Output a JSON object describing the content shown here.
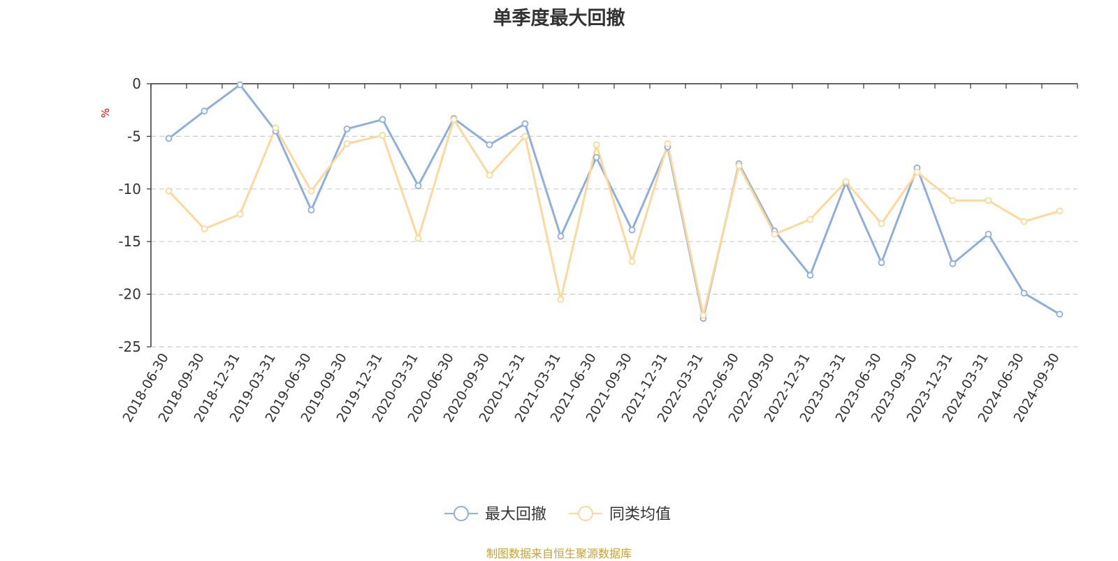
{
  "chart_data": {
    "type": "line",
    "title": "单季度最大回撤",
    "ylabel": "%",
    "xlabel": "",
    "ylim": [
      -25,
      0
    ],
    "yticks": [
      0,
      -5,
      -10,
      -15,
      -20,
      -25
    ],
    "grid": true,
    "legend_position": "bottom",
    "categories": [
      "2018-06-30",
      "2018-09-30",
      "2018-12-31",
      "2019-03-31",
      "2019-06-30",
      "2019-09-30",
      "2019-12-31",
      "2020-03-31",
      "2020-06-30",
      "2020-09-30",
      "2020-12-31",
      "2021-03-31",
      "2021-06-30",
      "2021-09-30",
      "2021-12-31",
      "2022-03-31",
      "2022-06-30",
      "2022-09-30",
      "2022-12-31",
      "2023-03-31",
      "2023-06-30",
      "2023-09-30",
      "2023-12-31",
      "2024-03-31",
      "2024-06-30",
      "2024-09-30"
    ],
    "series": [
      {
        "name": "最大回撤",
        "color": "#8eaedb",
        "values": [
          -5.2,
          -2.6,
          -0.1,
          -4.5,
          -12.0,
          -4.3,
          -3.4,
          -9.7,
          -3.3,
          -5.8,
          -3.8,
          -14.5,
          -7.0,
          -13.9,
          -6.0,
          -22.3,
          -7.6,
          -14.0,
          -18.2,
          -9.4,
          -17.0,
          -8.0,
          -17.1,
          -14.3,
          -19.9,
          -21.9
        ]
      },
      {
        "name": "同类均值",
        "color": "#fcd99b",
        "values": [
          -10.2,
          -13.8,
          -12.4,
          -4.2,
          -10.2,
          -5.7,
          -4.9,
          -14.7,
          -3.4,
          -8.7,
          -5.0,
          -20.5,
          -5.8,
          -16.9,
          -5.7,
          -22.0,
          -7.8,
          -14.3,
          -12.9,
          -9.3,
          -13.3,
          -8.4,
          -11.1,
          -11.1,
          -13.1,
          -12.1
        ]
      }
    ],
    "source": "制图数据来自恒生聚源数据库"
  }
}
